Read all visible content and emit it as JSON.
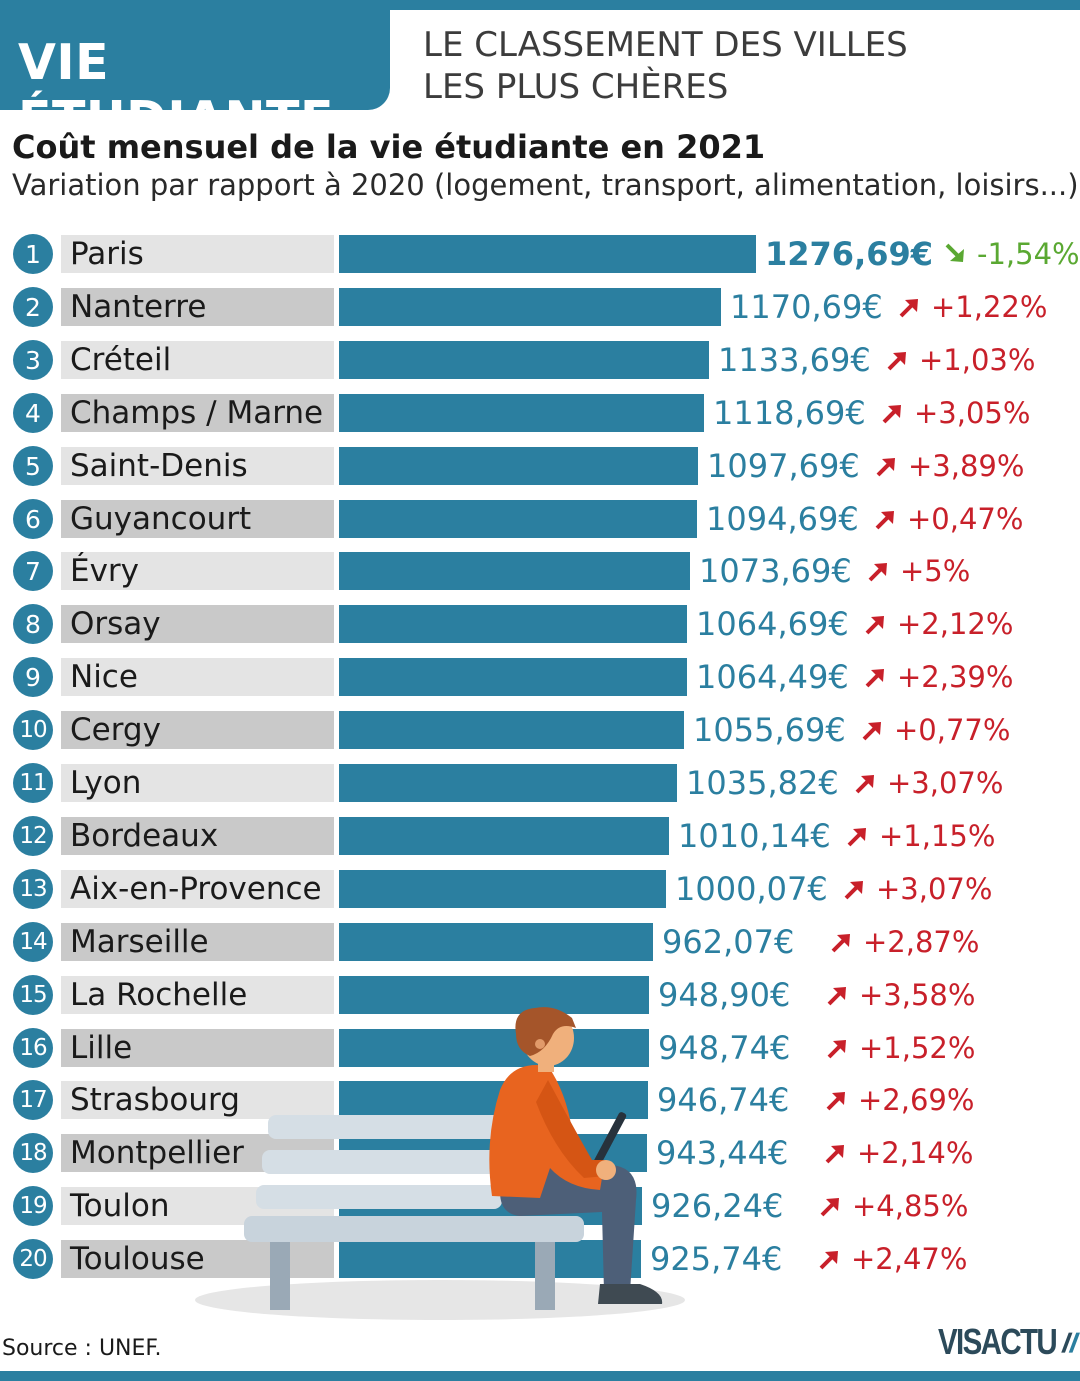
{
  "header": {
    "title": "VIE ÉTUDIANTE",
    "subtitle_line1": "LE CLASSEMENT DES VILLES",
    "subtitle_line2": "LES PLUS CHÈRES"
  },
  "colors": {
    "accent": "#2b7fa0",
    "label_bg_light": "#e4e4e4",
    "label_bg_dark": "#c9c9c9",
    "increase": "#c8202a",
    "decrease": "#5aa832"
  },
  "chart_data": {
    "type": "bar",
    "orientation": "horizontal",
    "title": "Coût mensuel de la vie étudiante en 2021",
    "subtitle": "Variation par rapport à 2020 (logement, transport, alimentation, loisirs...)",
    "unit": "€",
    "xlim": [
      0,
      1276.69
    ],
    "categories": [
      "Paris",
      "Nanterre",
      "Créteil",
      "Champs / Marne",
      "Saint-Denis",
      "Guyancourt",
      "Évry",
      "Orsay",
      "Nice",
      "Cergy",
      "Lyon",
      "Bordeaux",
      "Aix-en-Provence",
      "Marseille",
      "La Rochelle",
      "Lille",
      "Strasbourg",
      "Montpellier",
      "Toulon",
      "Toulouse"
    ],
    "values": [
      1276.69,
      1170.69,
      1133.69,
      1118.69,
      1097.69,
      1094.69,
      1073.69,
      1064.69,
      1064.49,
      1055.69,
      1035.82,
      1010.14,
      1000.07,
      962.07,
      948.9,
      948.74,
      946.74,
      943.44,
      926.24,
      925.74
    ],
    "value_labels": [
      "1276,69€",
      "1170,69€",
      "1133,69€",
      "1118,69€",
      "1097,69€",
      "1094,69€",
      "1073,69€",
      "1064,69€",
      "1064,49€",
      "1055,69€",
      "1035,82€",
      "1010,14€",
      "1000,07€",
      "962,07€",
      "948,90€",
      "948,74€",
      "946,74€",
      "943,44€",
      "926,24€",
      "925,74€"
    ],
    "changes": [
      "-1,54%",
      "+1,22%",
      "+1,03%",
      "+3,05%",
      "+3,89%",
      "+0,47%",
      "+5%",
      "+2,12%",
      "+2,39%",
      "+0,77%",
      "+3,07%",
      "+1,15%",
      "+3,07%",
      "+2,87%",
      "+3,58%",
      "+1,52%",
      "+2,69%",
      "+2,14%",
      "+4,85%",
      "+2,47%"
    ],
    "ranks": [
      "1",
      "2",
      "3",
      "4",
      "5",
      "6",
      "7",
      "8",
      "9",
      "10",
      "11",
      "12",
      "13",
      "14",
      "15",
      "16",
      "17",
      "18",
      "19",
      "20"
    ]
  },
  "footer": {
    "source": "Source : UNEF.",
    "logo": "VISACTU"
  }
}
